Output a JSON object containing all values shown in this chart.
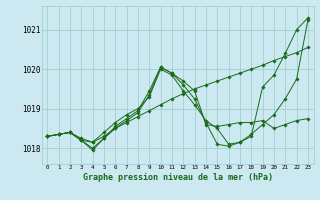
{
  "background_color": "#cce8f0",
  "grid_color": "#99cccc",
  "line_color": "#1a6b1a",
  "title": "Graphe pression niveau de la mer (hPa)",
  "ylabel_ticks": [
    1018,
    1019,
    1020,
    1021
  ],
  "xlim": [
    -0.5,
    23.5
  ],
  "ylim": [
    1017.6,
    1021.6
  ],
  "series": [
    {
      "x": [
        0,
        1,
        2,
        3,
        4,
        5,
        6,
        7,
        8,
        9,
        10,
        11,
        12,
        13,
        14,
        15,
        16,
        17,
        18,
        19,
        20,
        21,
        22,
        23
      ],
      "y": [
        1018.3,
        1018.35,
        1018.4,
        1018.25,
        1018.15,
        1018.3,
        1018.5,
        1018.65,
        1018.8,
        1018.95,
        1019.1,
        1019.25,
        1019.38,
        1019.5,
        1019.6,
        1019.7,
        1019.8,
        1019.9,
        1020.0,
        1020.1,
        1020.22,
        1020.32,
        1020.42,
        1020.55
      ]
    },
    {
      "x": [
        0,
        1,
        2,
        3,
        4,
        5,
        6,
        7,
        8,
        9,
        10,
        11,
        12,
        13,
        14,
        15,
        16,
        17,
        18,
        19,
        20,
        21,
        22,
        23
      ],
      "y": [
        1018.3,
        1018.35,
        1018.4,
        1018.2,
        1018.0,
        1018.25,
        1018.55,
        1018.75,
        1018.95,
        1019.45,
        1020.05,
        1019.9,
        1019.6,
        1019.25,
        1018.65,
        1018.1,
        1018.05,
        1018.15,
        1018.35,
        1018.6,
        1018.85,
        1019.25,
        1019.75,
        1021.25
      ]
    },
    {
      "x": [
        0,
        1,
        2,
        3,
        4,
        5,
        6,
        7,
        8,
        9,
        10,
        11,
        12,
        13,
        14,
        15,
        16,
        17,
        18,
        19,
        20,
        21,
        22,
        23
      ],
      "y": [
        1018.3,
        1018.35,
        1018.4,
        1018.2,
        1018.15,
        1018.4,
        1018.65,
        1018.85,
        1019.0,
        1019.3,
        1020.0,
        1019.85,
        1019.45,
        1019.1,
        1018.7,
        1018.5,
        1018.1,
        1018.15,
        1018.3,
        1019.55,
        1019.85,
        1020.4,
        1021.0,
        1021.3
      ]
    },
    {
      "x": [
        0,
        1,
        2,
        3,
        4,
        5,
        6,
        7,
        8,
        9,
        10,
        11,
        12,
        13,
        14,
        15,
        16,
        17,
        18,
        19,
        20,
        21,
        22,
        23
      ],
      "y": [
        1018.3,
        1018.35,
        1018.4,
        1018.2,
        1017.95,
        1018.25,
        1018.5,
        1018.7,
        1018.9,
        1019.35,
        1020.05,
        1019.9,
        1019.7,
        1019.45,
        1018.6,
        1018.55,
        1018.6,
        1018.65,
        1018.65,
        1018.7,
        1018.5,
        1018.6,
        1018.7,
        1018.75
      ]
    }
  ]
}
